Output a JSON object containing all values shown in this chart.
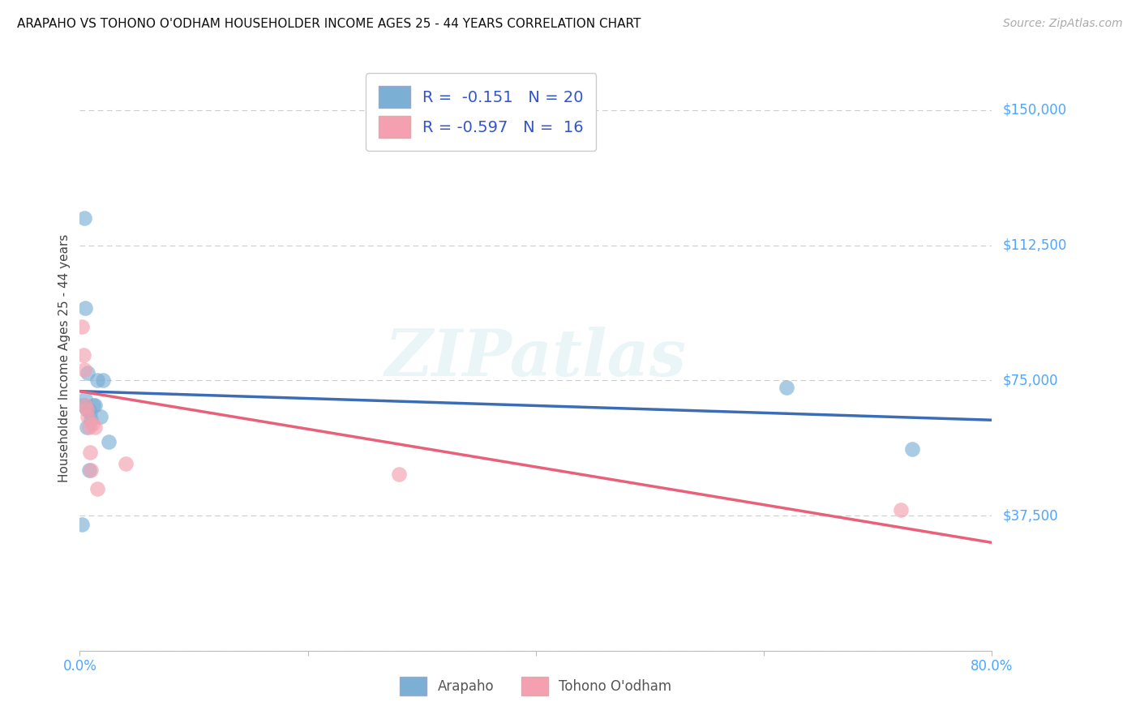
{
  "title": "ARAPAHO VS TOHONO O'ODHAM HOUSEHOLDER INCOME AGES 25 - 44 YEARS CORRELATION CHART",
  "source": "Source: ZipAtlas.com",
  "ylabel": "Householder Income Ages 25 - 44 years",
  "xlim": [
    0.0,
    0.8
  ],
  "ylim": [
    0,
    162500
  ],
  "yticks": [
    0,
    37500,
    75000,
    112500,
    150000
  ],
  "ytick_labels": [
    "",
    "$37,500",
    "$75,000",
    "$112,500",
    "$150,000"
  ],
  "xtick_positions": [
    0.0,
    0.2,
    0.4,
    0.6,
    0.8
  ],
  "xtick_labels": [
    "0.0%",
    "",
    "",
    "",
    "80.0%"
  ],
  "background_color": "#ffffff",
  "arapaho_color": "#7bafd4",
  "tohono_color": "#f4a0b0",
  "arapaho_line_color": "#3a6db5",
  "tohono_line_color": "#e8607a",
  "label_color": "#4da6ff",
  "arapaho_x": [
    0.002,
    0.003,
    0.004,
    0.005,
    0.005,
    0.006,
    0.006,
    0.007,
    0.008,
    0.008,
    0.009,
    0.01,
    0.012,
    0.013,
    0.015,
    0.018,
    0.02,
    0.025,
    0.62,
    0.73
  ],
  "arapaho_y": [
    35000,
    68000,
    120000,
    95000,
    70000,
    67000,
    62000,
    77000,
    67000,
    50000,
    66000,
    64000,
    68000,
    68000,
    75000,
    65000,
    75000,
    58000,
    73000,
    56000
  ],
  "tohono_x": [
    0.002,
    0.003,
    0.004,
    0.005,
    0.006,
    0.007,
    0.008,
    0.009,
    0.01,
    0.011,
    0.013,
    0.015,
    0.04,
    0.28,
    0.72
  ],
  "tohono_y": [
    90000,
    82000,
    78000,
    68000,
    67000,
    65000,
    62000,
    55000,
    50000,
    63000,
    62000,
    45000,
    52000,
    49000,
    39000
  ],
  "arapaho_line_x0": 0.0,
  "arapaho_line_x1": 0.8,
  "arapaho_line_y0": 72000,
  "arapaho_line_y1": 64000,
  "tohono_line_x0": 0.0,
  "tohono_line_x1": 0.8,
  "tohono_line_y0": 72000,
  "tohono_line_y1": 30000
}
